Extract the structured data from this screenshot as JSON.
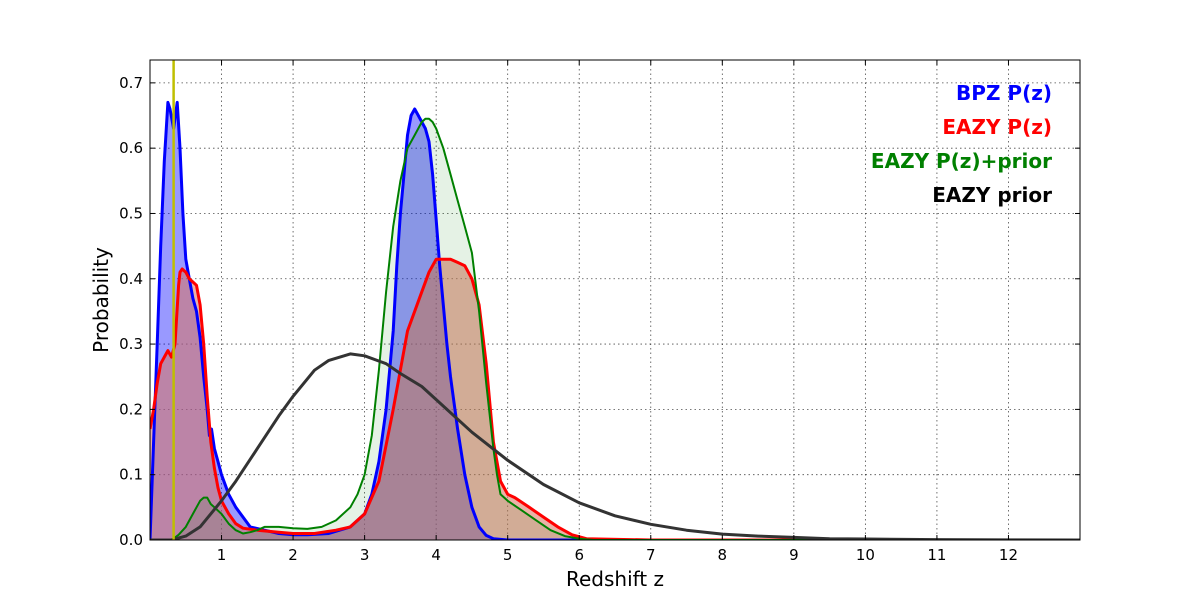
{
  "chart_data": {
    "type": "area",
    "title": "",
    "xlabel": "Redshift z",
    "ylabel": "Probability",
    "xlim": [
      0,
      13
    ],
    "ylim": [
      0,
      0.735
    ],
    "x_ticks": [
      1,
      2,
      3,
      4,
      5,
      6,
      7,
      8,
      9,
      10,
      11,
      12
    ],
    "x_tick_labels": [
      "1",
      "2",
      "3",
      "4",
      "5",
      "6",
      "7",
      "8",
      "9",
      "10",
      "11",
      "12"
    ],
    "y_ticks": [
      0.0,
      0.1,
      0.2,
      0.3,
      0.4,
      0.5,
      0.6,
      0.7
    ],
    "y_tick_labels": [
      "0.0",
      "0.1",
      "0.2",
      "0.3",
      "0.4",
      "0.5",
      "0.6",
      "0.7"
    ],
    "grid": true,
    "legend_position": "top-right",
    "vertical_line": {
      "x": 0.33,
      "color": "#bfbf00"
    },
    "series": [
      {
        "name": "BPZ P(z)",
        "color": "#0000ff",
        "fill": "#0000ff",
        "fill_opacity": 0.4,
        "line_width": 3,
        "x": [
          0,
          0.05,
          0.1,
          0.15,
          0.2,
          0.25,
          0.28,
          0.33,
          0.38,
          0.42,
          0.46,
          0.5,
          0.55,
          0.6,
          0.65,
          0.7,
          0.75,
          0.8,
          0.83,
          0.86,
          0.9,
          0.95,
          1.0,
          1.1,
          1.2,
          1.4,
          1.6,
          1.8,
          2.0,
          2.2,
          2.5,
          2.8,
          3.0,
          3.1,
          3.2,
          3.3,
          3.4,
          3.45,
          3.5,
          3.55,
          3.6,
          3.65,
          3.7,
          3.75,
          3.8,
          3.85,
          3.9,
          3.95,
          4.0,
          4.05,
          4.1,
          4.15,
          4.2,
          4.3,
          4.4,
          4.5,
          4.6,
          4.7,
          4.8,
          5.0,
          5.5,
          6.0,
          8.0,
          13.0
        ],
        "y": [
          0.0,
          0.15,
          0.3,
          0.45,
          0.58,
          0.67,
          0.66,
          0.63,
          0.67,
          0.6,
          0.5,
          0.43,
          0.4,
          0.37,
          0.35,
          0.31,
          0.25,
          0.2,
          0.16,
          0.17,
          0.14,
          0.12,
          0.1,
          0.07,
          0.05,
          0.02,
          0.015,
          0.01,
          0.008,
          0.008,
          0.01,
          0.02,
          0.04,
          0.07,
          0.12,
          0.2,
          0.32,
          0.42,
          0.5,
          0.56,
          0.62,
          0.65,
          0.66,
          0.65,
          0.64,
          0.63,
          0.61,
          0.56,
          0.49,
          0.42,
          0.36,
          0.3,
          0.25,
          0.17,
          0.1,
          0.05,
          0.02,
          0.007,
          0.002,
          0.0,
          0.0,
          0.0,
          0.0,
          0.0
        ]
      },
      {
        "name": "EAZY P(z)",
        "color": "#ff0000",
        "fill": "#d9725e",
        "fill_opacity": 0.55,
        "line_width": 3,
        "x": [
          0,
          0.05,
          0.1,
          0.15,
          0.2,
          0.25,
          0.3,
          0.35,
          0.4,
          0.42,
          0.45,
          0.5,
          0.55,
          0.6,
          0.65,
          0.7,
          0.75,
          0.8,
          0.85,
          0.9,
          0.95,
          1.0,
          1.1,
          1.2,
          1.3,
          1.5,
          1.8,
          2.0,
          2.3,
          2.6,
          2.8,
          3.0,
          3.2,
          3.4,
          3.6,
          3.8,
          3.9,
          4.0,
          4.1,
          4.2,
          4.3,
          4.4,
          4.5,
          4.6,
          4.7,
          4.8,
          4.9,
          5.0,
          5.1,
          5.3,
          5.5,
          5.7,
          5.9,
          6.1,
          7.0,
          13.0
        ],
        "y": [
          0.17,
          0.2,
          0.24,
          0.27,
          0.28,
          0.29,
          0.28,
          0.3,
          0.39,
          0.41,
          0.415,
          0.41,
          0.4,
          0.395,
          0.39,
          0.36,
          0.3,
          0.22,
          0.15,
          0.11,
          0.08,
          0.06,
          0.04,
          0.025,
          0.018,
          0.015,
          0.012,
          0.01,
          0.01,
          0.015,
          0.02,
          0.04,
          0.09,
          0.2,
          0.32,
          0.38,
          0.41,
          0.43,
          0.43,
          0.43,
          0.425,
          0.42,
          0.4,
          0.36,
          0.27,
          0.15,
          0.09,
          0.07,
          0.065,
          0.05,
          0.035,
          0.02,
          0.008,
          0.002,
          0.0,
          0.0
        ]
      },
      {
        "name": "EAZY P(z)+prior",
        "color": "#008000",
        "fill": "#008000",
        "fill_opacity": 0.1,
        "line_width": 2,
        "x": [
          0,
          0.3,
          0.4,
          0.5,
          0.6,
          0.7,
          0.75,
          0.8,
          0.85,
          0.9,
          1.0,
          1.1,
          1.2,
          1.3,
          1.4,
          1.5,
          1.6,
          1.8,
          2.0,
          2.2,
          2.4,
          2.6,
          2.8,
          2.9,
          3.0,
          3.1,
          3.2,
          3.3,
          3.4,
          3.5,
          3.6,
          3.7,
          3.8,
          3.85,
          3.9,
          3.95,
          4.0,
          4.1,
          4.2,
          4.3,
          4.4,
          4.5,
          4.6,
          4.7,
          4.8,
          4.85,
          4.9,
          5.0,
          5.2,
          5.4,
          5.6,
          5.8,
          6.0,
          6.2,
          7.0,
          13.0
        ],
        "y": [
          0.0,
          0.0,
          0.008,
          0.02,
          0.04,
          0.06,
          0.065,
          0.065,
          0.055,
          0.05,
          0.04,
          0.025,
          0.015,
          0.01,
          0.012,
          0.015,
          0.02,
          0.02,
          0.018,
          0.017,
          0.02,
          0.03,
          0.05,
          0.07,
          0.1,
          0.16,
          0.26,
          0.38,
          0.48,
          0.55,
          0.6,
          0.62,
          0.64,
          0.645,
          0.645,
          0.64,
          0.63,
          0.6,
          0.56,
          0.52,
          0.48,
          0.44,
          0.35,
          0.24,
          0.14,
          0.1,
          0.07,
          0.06,
          0.045,
          0.03,
          0.015,
          0.006,
          0.002,
          0.0,
          0.0,
          0.0
        ]
      },
      {
        "name": "EAZY prior",
        "color": "#333333",
        "fill": "none",
        "fill_opacity": 0,
        "line_width": 3,
        "x": [
          0,
          0.3,
          0.5,
          0.7,
          1.0,
          1.2,
          1.5,
          1.8,
          2.0,
          2.3,
          2.5,
          2.8,
          3.0,
          3.3,
          3.5,
          3.8,
          4.0,
          4.5,
          5.0,
          5.5,
          6.0,
          6.5,
          7.0,
          7.5,
          8.0,
          8.5,
          9.0,
          9.5,
          10.0,
          11.0,
          12.0,
          13.0
        ],
        "y": [
          0.0,
          0.0,
          0.006,
          0.02,
          0.06,
          0.09,
          0.14,
          0.19,
          0.22,
          0.26,
          0.275,
          0.285,
          0.282,
          0.27,
          0.255,
          0.235,
          0.215,
          0.165,
          0.122,
          0.085,
          0.057,
          0.037,
          0.024,
          0.015,
          0.009,
          0.006,
          0.004,
          0.002,
          0.0015,
          0.0006,
          0.0002,
          0.0
        ]
      }
    ],
    "legend": [
      {
        "label": "BPZ P(z)",
        "color": "#0000ff"
      },
      {
        "label": "EAZY P(z)",
        "color": "#ff0000"
      },
      {
        "label": "EAZY P(z)+prior",
        "color": "#008000"
      },
      {
        "label": "EAZY prior",
        "color": "#000000"
      }
    ]
  }
}
